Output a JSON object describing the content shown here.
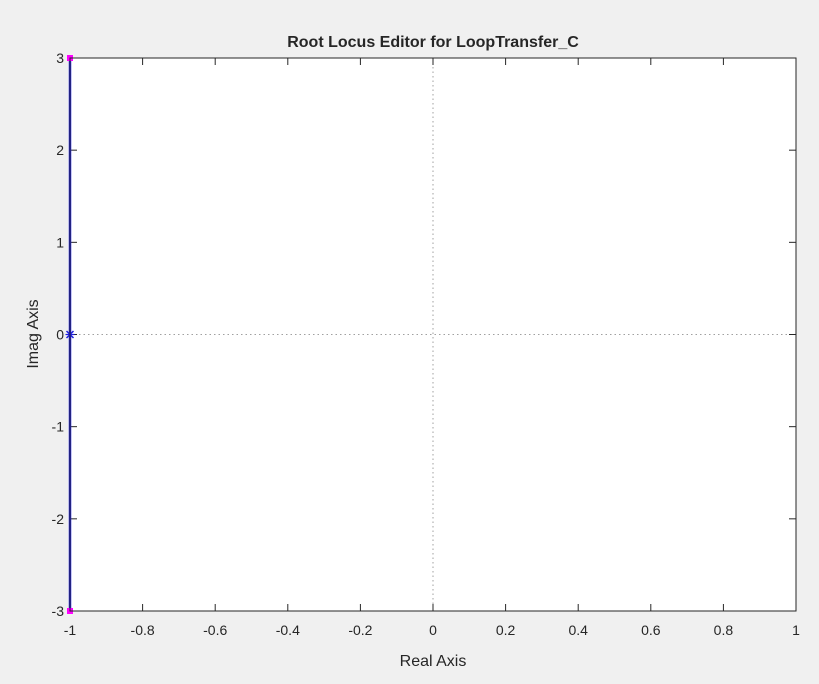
{
  "chart_data": {
    "type": "line",
    "title": "Root Locus Editor for LoopTransfer_C",
    "xlabel": "Real Axis",
    "ylabel": "Imag Axis",
    "xlim": [
      -1,
      1
    ],
    "ylim": [
      -3,
      3
    ],
    "x_ticks": [
      -1,
      -0.8,
      -0.6,
      -0.4,
      -0.2,
      0,
      0.2,
      0.4,
      0.6,
      0.8,
      1
    ],
    "x_tick_labels": [
      "-1",
      "-0.8",
      "-0.6",
      "-0.4",
      "-0.2",
      "0",
      "0.2",
      "0.4",
      "0.6",
      "0.8",
      "1"
    ],
    "y_ticks": [
      -3,
      -2,
      -1,
      0,
      1,
      2,
      3
    ],
    "y_tick_labels": [
      "-3",
      "-2",
      "-1",
      "0",
      "1",
      "2",
      "3"
    ],
    "grid": false,
    "reference_lines": {
      "x": 0,
      "y": 0,
      "style": "dotted"
    },
    "locus": {
      "color": "#1f1fe0",
      "points": [
        {
          "x": -1,
          "y": -3
        },
        {
          "x": -1,
          "y": 0
        },
        {
          "x": -1,
          "y": 3
        }
      ]
    },
    "open_loop_pole": {
      "x": -1,
      "y": 0,
      "marker": "x",
      "color": "#1f1fe0"
    },
    "closed_loop_poles": {
      "marker": "square",
      "color": "#ff00ff",
      "points": [
        {
          "x": -1,
          "y": 3
        },
        {
          "x": -1,
          "y": -3
        }
      ]
    }
  }
}
